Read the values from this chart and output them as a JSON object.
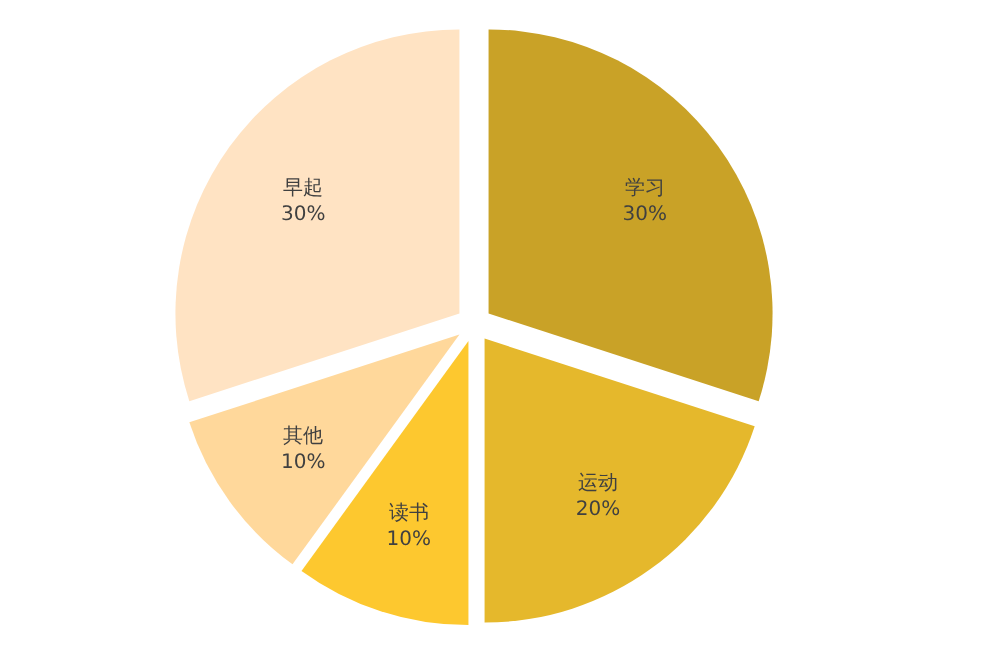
{
  "chart_data": {
    "type": "pie",
    "categories": [
      "学习",
      "运动",
      "读书",
      "其他",
      "早起"
    ],
    "values": [
      30,
      20,
      10,
      10,
      30
    ],
    "value_labels": [
      "30%",
      "20%",
      "10%",
      "10%",
      "30%"
    ],
    "colors": [
      "#c9a227",
      "#e5b82c",
      "#fdc82f",
      "#ffd89b",
      "#ffe3c3"
    ]
  }
}
